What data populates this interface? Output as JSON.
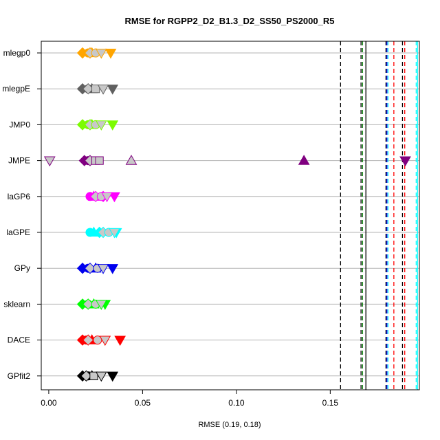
{
  "chart_data": {
    "type": "scatter",
    "title": "RMSE for RGPP2_D2_B1.3_D2_SS50_PS2000_R5",
    "xlabel": "RMSE (0.19, 0.18)",
    "xlim": [
      -0.004,
      0.1975
    ],
    "xticks": [
      0.0,
      0.05,
      0.1,
      0.15
    ],
    "xtick_labels": [
      "0.00",
      "0.05",
      "0.10",
      "0.15"
    ],
    "grid": "horizontal lines per category",
    "categories": [
      "mlegp0",
      "mlegpE",
      "JMP0",
      "JMPE",
      "laGP6",
      "laGPE",
      "GPy",
      "sklearn",
      "DACE",
      "GPfit2"
    ],
    "series": [
      {
        "category": "mlegp0",
        "color": "#FFA500",
        "edge": "#FFA500",
        "points": [
          {
            "x": 0.018,
            "m": "diamond"
          },
          {
            "x": 0.021,
            "m": "circle"
          },
          {
            "x": 0.023,
            "m": "triangle-up"
          },
          {
            "x": 0.033,
            "m": "triangle-down"
          }
        ],
        "gray": [
          {
            "x": 0.022,
            "m": "diamond"
          },
          {
            "x": 0.025,
            "m": "circle"
          },
          {
            "x": 0.028,
            "m": "triangle-down"
          }
        ]
      },
      {
        "category": "mlegpE",
        "color": "#606060",
        "edge": "#606060",
        "points": [
          {
            "x": 0.018,
            "m": "diamond"
          },
          {
            "x": 0.021,
            "m": "circle"
          },
          {
            "x": 0.023,
            "m": "triangle-up"
          },
          {
            "x": 0.034,
            "m": "triangle-down"
          }
        ],
        "gray": [
          {
            "x": 0.021,
            "m": "diamond"
          },
          {
            "x": 0.025,
            "m": "square"
          },
          {
            "x": 0.029,
            "m": "triangle-down"
          }
        ]
      },
      {
        "category": "JMP0",
        "color": "#7CFC00",
        "edge": "#7CFC00",
        "points": [
          {
            "x": 0.018,
            "m": "diamond"
          },
          {
            "x": 0.021,
            "m": "circle"
          },
          {
            "x": 0.023,
            "m": "triangle-up"
          },
          {
            "x": 0.034,
            "m": "triangle-down"
          }
        ],
        "gray": [
          {
            "x": 0.022,
            "m": "diamond"
          },
          {
            "x": 0.025,
            "m": "circle"
          },
          {
            "x": 0.028,
            "m": "triangle-down"
          }
        ]
      },
      {
        "category": "JMPE",
        "color": "#800080",
        "edge": "#800080",
        "points": [
          {
            "x": 0.019,
            "m": "diamond"
          },
          {
            "x": 0.021,
            "m": "circle"
          },
          {
            "x": 0.136,
            "m": "triangle-up"
          },
          {
            "x": 0.19,
            "m": "triangle-down"
          }
        ],
        "gray": [
          {
            "x": 0.0005,
            "m": "triangle-down"
          },
          {
            "x": 0.022,
            "m": "diamond"
          },
          {
            "x": 0.025,
            "m": "square"
          },
          {
            "x": 0.027,
            "m": "square"
          },
          {
            "x": 0.044,
            "m": "triangle-up"
          }
        ]
      },
      {
        "category": "laGP6",
        "color": "#FF00FF",
        "edge": "#FF00FF",
        "points": [
          {
            "x": 0.022,
            "m": "circle"
          },
          {
            "x": 0.024,
            "m": "triangle-up"
          },
          {
            "x": 0.029,
            "m": "diamond"
          },
          {
            "x": 0.035,
            "m": "triangle-down"
          }
        ],
        "gray": [
          {
            "x": 0.025,
            "m": "diamond"
          },
          {
            "x": 0.028,
            "m": "circle"
          },
          {
            "x": 0.031,
            "m": "triangle-down"
          }
        ]
      },
      {
        "category": "laGPE",
        "color": "#00FFFF",
        "edge": "#00FFFF",
        "points": [
          {
            "x": 0.022,
            "m": "circle"
          },
          {
            "x": 0.024,
            "m": "triangle-up"
          },
          {
            "x": 0.027,
            "m": "diamond"
          },
          {
            "x": 0.036,
            "m": "triangle-down"
          }
        ],
        "gray": [
          {
            "x": 0.029,
            "m": "diamond"
          },
          {
            "x": 0.032,
            "m": "circle"
          },
          {
            "x": 0.035,
            "m": "triangle-down"
          }
        ]
      },
      {
        "category": "GPy",
        "color": "#0000EE",
        "edge": "#0000EE",
        "points": [
          {
            "x": 0.018,
            "m": "diamond"
          },
          {
            "x": 0.021,
            "m": "circle"
          },
          {
            "x": 0.025,
            "m": "triangle-up"
          },
          {
            "x": 0.034,
            "m": "triangle-down"
          }
        ],
        "gray": [
          {
            "x": 0.022,
            "m": "diamond"
          },
          {
            "x": 0.026,
            "m": "circle"
          },
          {
            "x": 0.029,
            "m": "triangle-down"
          }
        ]
      },
      {
        "category": "sklearn",
        "color": "#00FF00",
        "edge": "#00FF00",
        "points": [
          {
            "x": 0.018,
            "m": "diamond"
          },
          {
            "x": 0.021,
            "m": "circle"
          },
          {
            "x": 0.024,
            "m": "triangle-up"
          },
          {
            "x": 0.03,
            "m": "triangle-down"
          }
        ],
        "gray": [
          {
            "x": 0.021,
            "m": "diamond"
          },
          {
            "x": 0.025,
            "m": "circle"
          },
          {
            "x": 0.028,
            "m": "triangle-down"
          }
        ]
      },
      {
        "category": "DACE",
        "color": "#FF0000",
        "edge": "#FF0000",
        "points": [
          {
            "x": 0.018,
            "m": "diamond"
          },
          {
            "x": 0.02,
            "m": "circle"
          },
          {
            "x": 0.023,
            "m": "triangle-up"
          },
          {
            "x": 0.038,
            "m": "triangle-down"
          }
        ],
        "gray": [
          {
            "x": 0.021,
            "m": "diamond"
          },
          {
            "x": 0.026,
            "m": "circle"
          },
          {
            "x": 0.03,
            "m": "triangle-down"
          }
        ]
      },
      {
        "category": "GPfit2",
        "color": "#000000",
        "edge": "#000000",
        "points": [
          {
            "x": 0.018,
            "m": "diamond"
          },
          {
            "x": 0.021,
            "m": "circle"
          },
          {
            "x": 0.023,
            "m": "triangle-up"
          },
          {
            "x": 0.034,
            "m": "triangle-down"
          }
        ],
        "gray": [
          {
            "x": 0.02,
            "m": "diamond"
          },
          {
            "x": 0.024,
            "m": "square"
          },
          {
            "x": 0.028,
            "m": "triangle-down"
          }
        ]
      }
    ],
    "vlines": [
      {
        "x": 0.1555,
        "color": "#000000",
        "style": "dashed"
      },
      {
        "x": 0.1664,
        "color": "#000000",
        "style": "dashed"
      },
      {
        "x": 0.1672,
        "color": "#008000",
        "style": "dashed"
      },
      {
        "x": 0.169,
        "color": "#000000",
        "style": "solid"
      },
      {
        "x": 0.1797,
        "color": "#000000",
        "style": "dashed"
      },
      {
        "x": 0.1802,
        "color": "#0000EE",
        "style": "dashed"
      },
      {
        "x": 0.1808,
        "color": "#00FFFF",
        "style": "dashed"
      },
      {
        "x": 0.1839,
        "color": "#FF0000",
        "style": "dashed"
      },
      {
        "x": 0.1885,
        "color": "#000000",
        "style": "dashed"
      },
      {
        "x": 0.1897,
        "color": "#FF0000",
        "style": "dashed"
      },
      {
        "x": 0.1958,
        "color": "#00FFFF",
        "style": "dashed"
      },
      {
        "x": 0.1965,
        "color": "#00FFFF",
        "style": "solid"
      }
    ]
  }
}
